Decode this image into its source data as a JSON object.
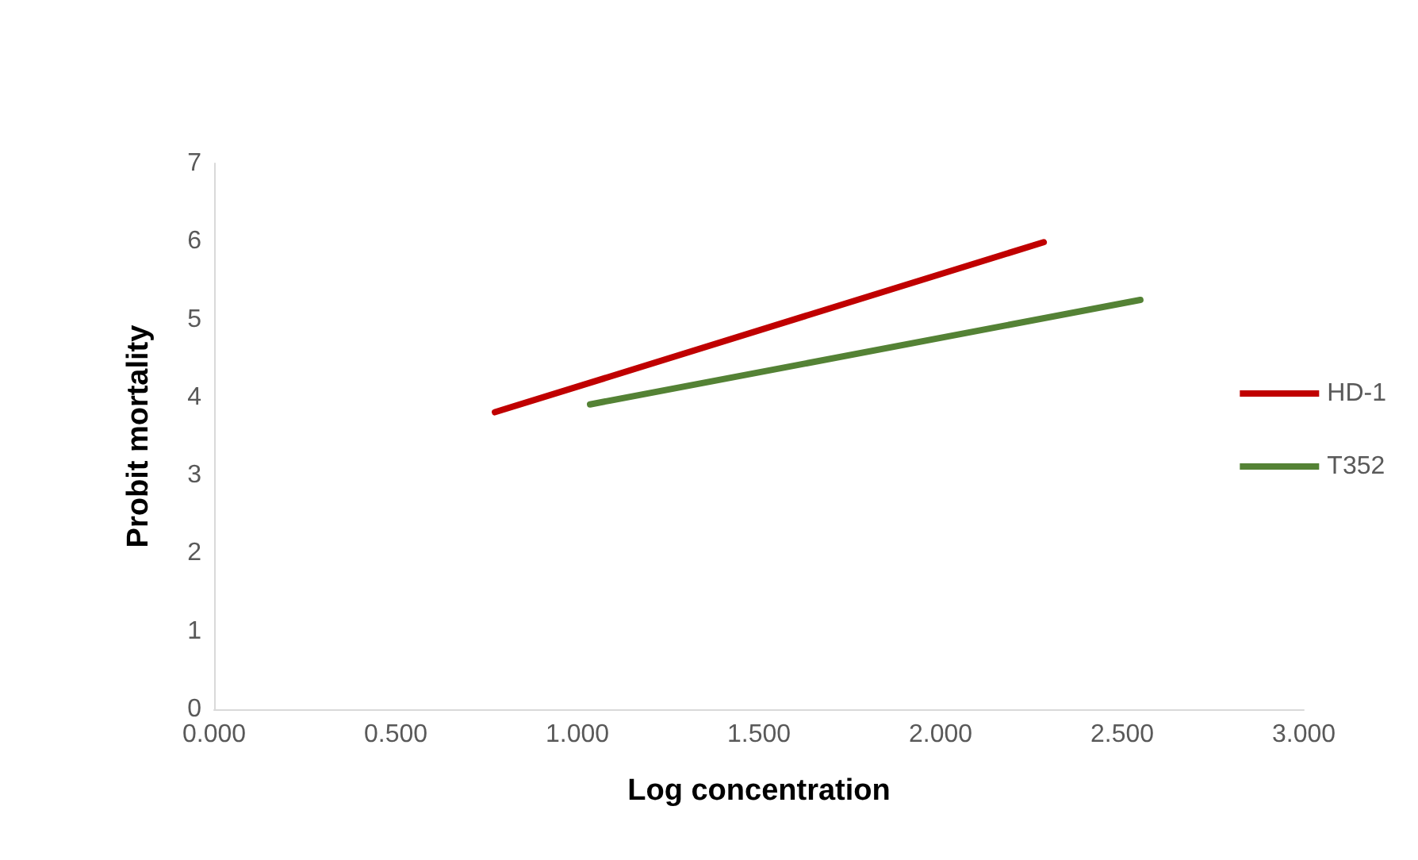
{
  "chart_data": {
    "type": "line",
    "xlabel": "Log concentration",
    "ylabel": "Probit mortality",
    "series": [
      {
        "name": "HD-1",
        "color": "#c00000",
        "x": [
          0.773,
          2.284
        ],
        "values": [
          3.81,
          5.99
        ]
      },
      {
        "name": "T352",
        "color": "#548235",
        "x": [
          1.035,
          2.55
        ],
        "values": [
          3.91,
          5.25
        ]
      }
    ],
    "xlim": [
      0,
      3
    ],
    "xticks": [
      {
        "value": 0,
        "label": "0.000"
      },
      {
        "value": 0.5,
        "label": "0.500"
      },
      {
        "value": 1,
        "label": "1.000"
      },
      {
        "value": 1.5,
        "label": "1.500"
      },
      {
        "value": 2,
        "label": "2.000"
      },
      {
        "value": 2.5,
        "label": "2.500"
      },
      {
        "value": 3,
        "label": "3.000"
      }
    ],
    "ylim": [
      0,
      7
    ],
    "yticks": [
      0,
      1,
      2,
      3,
      4,
      5,
      6,
      7
    ],
    "grid": false,
    "legend": "right",
    "marker": "none",
    "line_style": "solid"
  }
}
